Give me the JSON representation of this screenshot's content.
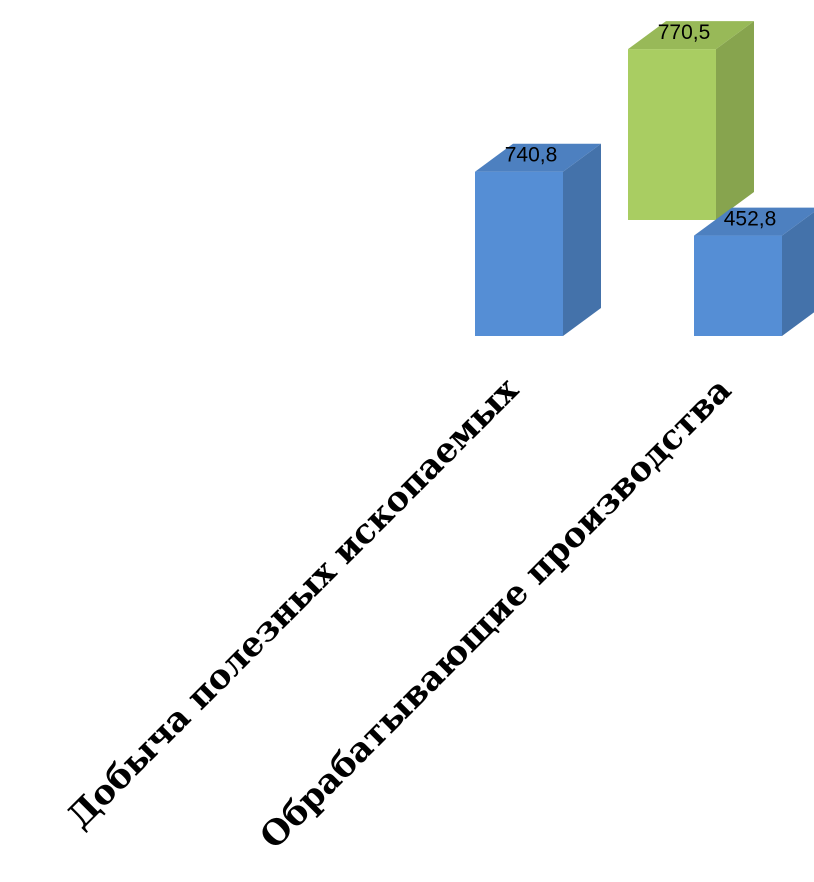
{
  "chart_data": {
    "type": "bar",
    "style": "3d-column",
    "title": "",
    "xlabel": "",
    "ylabel": "",
    "categories": [
      "Добыча полезных ископаемых",
      "Обрабатывающие производства"
    ],
    "bars": [
      {
        "category": 0,
        "value": 740.8,
        "label": "740,8",
        "color": "#558ed5"
      },
      {
        "category": 1,
        "value": 770.5,
        "label": "770,5",
        "color": "#a9cd62"
      },
      {
        "category": 1,
        "value": 452.8,
        "label": "452,8",
        "color": "#558ed5"
      }
    ],
    "grid": false,
    "legend": "none"
  }
}
